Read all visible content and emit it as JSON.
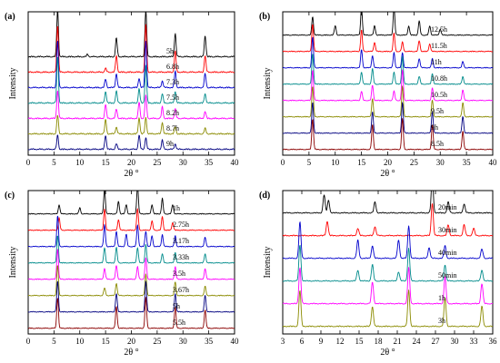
{
  "chart_data": [
    {
      "panel": "(a)",
      "type": "line",
      "xlabel": "2θ °",
      "ylabel": "Intensity",
      "xlim": [
        0,
        40
      ],
      "xticks": [
        0,
        5,
        10,
        15,
        20,
        25,
        30,
        35,
        40
      ],
      "series": [
        {
          "name": "5h",
          "color": "#000000",
          "peaks": [
            [
              5.7,
              1.0
            ],
            [
              17.1,
              0.4
            ],
            [
              22.8,
              1.0
            ],
            [
              28.5,
              0.5
            ],
            [
              34.3,
              0.45
            ],
            [
              11.5,
              0.05
            ]
          ]
        },
        {
          "name": "6.8h",
          "color": "#ff0000",
          "peaks": [
            [
              5.7,
              1.0
            ],
            [
              17.1,
              0.35
            ],
            [
              22.8,
              1.0
            ],
            [
              28.5,
              0.45
            ],
            [
              34.3,
              0.35
            ],
            [
              15.0,
              0.08
            ]
          ]
        },
        {
          "name": "7.3h",
          "color": "#0000cc",
          "peaks": [
            [
              5.7,
              1.0
            ],
            [
              15.0,
              0.18
            ],
            [
              17.1,
              0.3
            ],
            [
              21.5,
              0.2
            ],
            [
              22.8,
              1.0
            ],
            [
              26.0,
              0.15
            ],
            [
              28.5,
              0.35
            ],
            [
              34.3,
              0.3
            ]
          ]
        },
        {
          "name": "7.5h",
          "color": "#008b8b",
          "peaks": [
            [
              5.7,
              1.0
            ],
            [
              15.0,
              0.25
            ],
            [
              17.1,
              0.25
            ],
            [
              21.5,
              0.3
            ],
            [
              22.8,
              0.8
            ],
            [
              26.0,
              0.2
            ],
            [
              28.5,
              0.25
            ],
            [
              34.3,
              0.2
            ]
          ]
        },
        {
          "name": "8.2h",
          "color": "#ff00ff",
          "peaks": [
            [
              5.7,
              0.6
            ],
            [
              15.0,
              0.3
            ],
            [
              17.1,
              0.2
            ],
            [
              21.5,
              0.35
            ],
            [
              22.8,
              0.5
            ],
            [
              26.0,
              0.25
            ],
            [
              28.5,
              0.2
            ],
            [
              34.3,
              0.15
            ]
          ]
        },
        {
          "name": "8.7h",
          "color": "#8b8b00",
          "peaks": [
            [
              5.7,
              0.4
            ],
            [
              15.0,
              0.3
            ],
            [
              17.1,
              0.15
            ],
            [
              21.5,
              0.35
            ],
            [
              22.8,
              0.35
            ],
            [
              26.0,
              0.25
            ],
            [
              28.5,
              0.15
            ],
            [
              34.3,
              0.12
            ]
          ]
        },
        {
          "name": "9h",
          "color": "#000080",
          "peaks": [
            [
              5.7,
              0.3
            ],
            [
              15.0,
              0.3
            ],
            [
              17.1,
              0.12
            ],
            [
              21.5,
              0.3
            ],
            [
              22.8,
              0.25
            ],
            [
              26.0,
              0.2
            ],
            [
              28.5,
              0.12
            ]
          ]
        }
      ]
    },
    {
      "panel": "(b)",
      "type": "line",
      "xlabel": "2θ °",
      "ylabel": "Intensity",
      "xlim": [
        0,
        40
      ],
      "xticks": [
        0,
        5,
        10,
        15,
        20,
        25,
        30,
        35,
        40
      ],
      "series": [
        {
          "name": "12.5h",
          "color": "#000000",
          "peaks": [
            [
              5.7,
              0.6
            ],
            [
              10.0,
              0.3
            ],
            [
              15.0,
              0.9
            ],
            [
              17.5,
              0.3
            ],
            [
              21.2,
              0.9
            ],
            [
              24.0,
              0.3
            ],
            [
              26.0,
              0.45
            ],
            [
              28.0,
              0.3
            ],
            [
              30.0,
              0.2
            ]
          ]
        },
        {
          "name": "11.5h",
          "color": "#ff0000",
          "peaks": [
            [
              5.7,
              0.9
            ],
            [
              15.0,
              0.7
            ],
            [
              17.5,
              0.3
            ],
            [
              21.2,
              0.6
            ],
            [
              22.8,
              0.3
            ],
            [
              26.0,
              0.35
            ],
            [
              28.0,
              0.25
            ]
          ]
        },
        {
          "name": "11h",
          "color": "#0000cc",
          "peaks": [
            [
              5.7,
              1.0
            ],
            [
              15.0,
              0.6
            ],
            [
              17.1,
              0.4
            ],
            [
              21.2,
              0.5
            ],
            [
              22.8,
              0.5
            ],
            [
              26.0,
              0.3
            ],
            [
              28.5,
              0.3
            ],
            [
              34.3,
              0.2
            ]
          ]
        },
        {
          "name": "10.8h",
          "color": "#008b8b",
          "peaks": [
            [
              5.7,
              1.0
            ],
            [
              15.0,
              0.4
            ],
            [
              17.1,
              0.5
            ],
            [
              21.2,
              0.4
            ],
            [
              22.8,
              0.9
            ],
            [
              26.0,
              0.25
            ],
            [
              28.5,
              0.35
            ],
            [
              34.3,
              0.25
            ]
          ]
        },
        {
          "name": "10.5h",
          "color": "#ff00ff",
          "peaks": [
            [
              5.7,
              1.0
            ],
            [
              15.0,
              0.3
            ],
            [
              17.1,
              0.5
            ],
            [
              21.2,
              0.3
            ],
            [
              22.8,
              1.0
            ],
            [
              28.5,
              0.4
            ],
            [
              34.3,
              0.35
            ]
          ]
        },
        {
          "name": "9.5h",
          "color": "#8b8b00",
          "peaks": [
            [
              5.7,
              1.0
            ],
            [
              17.1,
              0.6
            ],
            [
              22.8,
              1.0
            ],
            [
              28.5,
              0.55
            ],
            [
              34.3,
              0.45
            ]
          ]
        },
        {
          "name": "9h",
          "color": "#000080",
          "peaks": [
            [
              5.7,
              1.0
            ],
            [
              17.1,
              0.7
            ],
            [
              22.8,
              1.0
            ],
            [
              28.5,
              0.7
            ],
            [
              34.3,
              0.55
            ]
          ]
        },
        {
          "name": "8.5h",
          "color": "#8b0000",
          "peaks": [
            [
              5.7,
              1.0
            ],
            [
              17.1,
              0.8
            ],
            [
              22.8,
              1.0
            ],
            [
              28.5,
              0.8
            ],
            [
              34.3,
              0.6
            ]
          ]
        }
      ]
    },
    {
      "panel": "(c)",
      "type": "line",
      "xlabel": "2θ °",
      "ylabel": "Intensity",
      "xlim": [
        0,
        40
      ],
      "xticks": [
        0,
        5,
        10,
        15,
        20,
        25,
        30,
        35,
        40
      ],
      "series": [
        {
          "name": "1h",
          "color": "#000000",
          "peaks": [
            [
              6.0,
              0.3
            ],
            [
              10.0,
              0.2
            ],
            [
              14.8,
              0.8
            ],
            [
              17.5,
              0.4
            ],
            [
              19.0,
              0.3
            ],
            [
              21.2,
              0.9
            ],
            [
              24.0,
              0.3
            ],
            [
              26.0,
              0.5
            ],
            [
              28.0,
              0.3
            ]
          ]
        },
        {
          "name": "2.75h",
          "color": "#ff0000",
          "peaks": [
            [
              6.0,
              0.4
            ],
            [
              14.8,
              0.7
            ],
            [
              17.5,
              0.35
            ],
            [
              21.2,
              0.7
            ],
            [
              24.0,
              0.3
            ],
            [
              26.0,
              0.45
            ],
            [
              28.0,
              0.25
            ]
          ]
        },
        {
          "name": "3.17h",
          "color": "#0000cc",
          "peaks": [
            [
              5.7,
              1.0
            ],
            [
              14.8,
              0.7
            ],
            [
              17.1,
              0.5
            ],
            [
              19.0,
              0.4
            ],
            [
              21.2,
              0.7
            ],
            [
              22.8,
              0.5
            ],
            [
              24.0,
              0.35
            ],
            [
              26.0,
              0.4
            ],
            [
              28.5,
              0.35
            ],
            [
              34.3,
              0.3
            ]
          ]
        },
        {
          "name": "3.33h",
          "color": "#008b8b",
          "peaks": [
            [
              5.7,
              0.9
            ],
            [
              14.8,
              0.5
            ],
            [
              17.1,
              0.5
            ],
            [
              21.2,
              0.5
            ],
            [
              22.8,
              0.6
            ],
            [
              26.0,
              0.3
            ],
            [
              28.5,
              0.35
            ],
            [
              34.3,
              0.3
            ]
          ]
        },
        {
          "name": "3.5h",
          "color": "#ff00ff",
          "peaks": [
            [
              5.7,
              1.0
            ],
            [
              14.8,
              0.35
            ],
            [
              17.1,
              0.45
            ],
            [
              21.2,
              0.4
            ],
            [
              22.8,
              0.7
            ],
            [
              28.5,
              0.4
            ],
            [
              34.3,
              0.35
            ]
          ]
        },
        {
          "name": "3.67h",
          "color": "#8b8b00",
          "peaks": [
            [
              5.7,
              1.0
            ],
            [
              14.8,
              0.25
            ],
            [
              17.1,
              0.4
            ],
            [
              22.8,
              0.7
            ],
            [
              28.5,
              0.45
            ],
            [
              34.3,
              0.3
            ]
          ]
        },
        {
          "name": "5h",
          "color": "#000080",
          "peaks": [
            [
              5.7,
              1.0
            ],
            [
              17.1,
              0.6
            ],
            [
              22.8,
              1.0
            ],
            [
              28.5,
              0.6
            ],
            [
              34.3,
              0.55
            ]
          ]
        },
        {
          "name": "5.5h",
          "color": "#8b0000",
          "peaks": [
            [
              5.7,
              1.0
            ],
            [
              17.1,
              0.7
            ],
            [
              22.8,
              1.0
            ],
            [
              28.5,
              0.7
            ],
            [
              34.3,
              0.6
            ]
          ]
        }
      ]
    },
    {
      "panel": "(d)",
      "type": "line",
      "xlabel": "2θ °",
      "ylabel": "Intensity",
      "xlim": [
        3,
        36
      ],
      "xticks": [
        3,
        6,
        9,
        12,
        15,
        18,
        21,
        24,
        27,
        30,
        33,
        36
      ],
      "series": [
        {
          "name": "20min",
          "color": "#000000",
          "peaks": [
            [
              9.5,
              0.5
            ],
            [
              10.2,
              0.35
            ],
            [
              17.5,
              0.3
            ],
            [
              26.5,
              1.0
            ],
            [
              29.0,
              0.3
            ],
            [
              31.5,
              0.25
            ]
          ]
        },
        {
          "name": "30min",
          "color": "#ff0000",
          "peaks": [
            [
              10.0,
              0.4
            ],
            [
              14.8,
              0.2
            ],
            [
              17.5,
              0.25
            ],
            [
              26.5,
              0.9
            ],
            [
              29.0,
              0.3
            ],
            [
              31.5,
              0.3
            ],
            [
              33.0,
              0.2
            ]
          ]
        },
        {
          "name": "40min",
          "color": "#0000cc",
          "peaks": [
            [
              5.7,
              1.0
            ],
            [
              14.8,
              0.5
            ],
            [
              17.1,
              0.35
            ],
            [
              21.2,
              0.5
            ],
            [
              22.8,
              0.9
            ],
            [
              26.0,
              0.3
            ],
            [
              28.5,
              0.35
            ],
            [
              34.3,
              0.25
            ]
          ]
        },
        {
          "name": "50min",
          "color": "#008b8b",
          "peaks": [
            [
              5.7,
              1.0
            ],
            [
              14.8,
              0.3
            ],
            [
              17.1,
              0.45
            ],
            [
              21.2,
              0.25
            ],
            [
              22.8,
              0.9
            ],
            [
              28.5,
              0.45
            ],
            [
              34.3,
              0.3
            ]
          ]
        },
        {
          "name": "1h",
          "color": "#ff00ff",
          "peaks": [
            [
              5.7,
              1.0
            ],
            [
              17.1,
              0.6
            ],
            [
              22.8,
              1.0
            ],
            [
              28.5,
              0.75
            ],
            [
              34.3,
              0.55
            ]
          ]
        },
        {
          "name": "3h",
          "color": "#8b8b00",
          "peaks": [
            [
              5.7,
              1.0
            ],
            [
              17.1,
              0.55
            ],
            [
              22.8,
              1.0
            ],
            [
              28.5,
              0.8
            ],
            [
              34.3,
              0.55
            ]
          ]
        }
      ]
    }
  ]
}
